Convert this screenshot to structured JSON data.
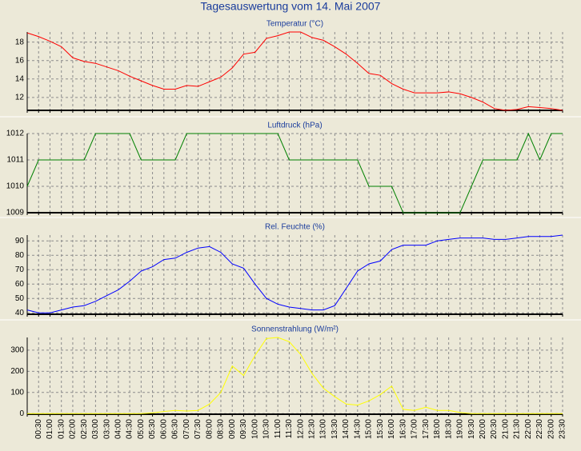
{
  "title": "Tagesauswertung vom 14. Mai 2007",
  "chart_data": [
    {
      "type": "line",
      "title": "Temperatur (°C)",
      "color": "#ff0000",
      "ylim": [
        10.6,
        19.1
      ],
      "yticks": [
        12,
        14,
        16,
        18
      ],
      "grid": true,
      "values": [
        19.0,
        18.6,
        18.1,
        17.5,
        16.3,
        15.9,
        15.7,
        15.3,
        14.9,
        14.3,
        13.8,
        13.3,
        12.9,
        12.9,
        13.3,
        13.2,
        13.7,
        14.2,
        15.2,
        16.7,
        16.9,
        18.4,
        18.7,
        19.1,
        19.1,
        18.5,
        18.2,
        17.5,
        16.7,
        15.7,
        14.6,
        14.4,
        13.5,
        12.9,
        12.5,
        12.5,
        12.5,
        12.6,
        12.4,
        12.0,
        11.5,
        10.8,
        10.6,
        10.7,
        11.0,
        10.9,
        10.8,
        10.6
      ]
    },
    {
      "type": "line",
      "title": "Luftdruck (hPa)",
      "color": "#008000",
      "ylim": [
        1009,
        1012
      ],
      "yticks": [
        1009,
        1010,
        1011,
        1012
      ],
      "grid": true,
      "values": [
        1010,
        1011,
        1011,
        1011,
        1011,
        1011,
        1012,
        1012,
        1012,
        1012,
        1011,
        1011,
        1011,
        1011,
        1012,
        1012,
        1012,
        1012,
        1012,
        1012,
        1012,
        1012,
        1012,
        1011,
        1011,
        1011,
        1011,
        1011,
        1011,
        1011,
        1010,
        1010,
        1010,
        1009,
        1009,
        1009,
        1009,
        1009,
        1009,
        1010,
        1011,
        1011,
        1011,
        1011,
        1012,
        1011,
        1012,
        1012
      ]
    },
    {
      "type": "line",
      "title": "Rel. Feuchte (%)",
      "color": "#0000ff",
      "ylim": [
        39,
        94
      ],
      "yticks": [
        40,
        50,
        60,
        70,
        80,
        90
      ],
      "grid": true,
      "values": [
        42,
        40,
        40,
        42,
        44,
        45,
        48,
        52,
        56,
        62,
        69,
        72,
        77,
        78,
        82,
        85,
        86,
        82,
        74,
        71,
        60,
        50,
        46,
        44,
        43,
        42,
        42,
        45,
        57,
        69,
        74,
        76,
        84,
        87,
        87,
        87,
        90,
        91,
        92,
        92,
        92,
        91,
        91,
        92,
        93,
        93,
        93,
        94
      ]
    },
    {
      "type": "line",
      "title": "Sonnenstrahlung (W/m²)",
      "color": "#ffff00",
      "ylim": [
        -3,
        360
      ],
      "yticks": [
        0,
        100,
        200,
        300
      ],
      "grid": true,
      "categories": [
        null,
        "00:30",
        "01:00",
        "01:30",
        "02:00",
        "02:30",
        "03:00",
        "03:30",
        "04:00",
        "04:30",
        "05:00",
        "05:30",
        "06:00",
        "06:30",
        "07:00",
        "07:30",
        "08:00",
        "08:30",
        "09:00",
        "09:30",
        "10:00",
        "10:30",
        "11:00",
        "11:30",
        "12:00",
        "12:30",
        "13:00",
        "13:30",
        "14:00",
        "14:30",
        "15:00",
        "15:30",
        "16:00",
        "16:30",
        "17:00",
        "17:30",
        "18:00",
        "18:30",
        "19:00",
        "19:30",
        "20:00",
        "20:30",
        "21:00",
        "21:30",
        "22:00",
        "22:30",
        "23:00",
        "23:30"
      ],
      "values": [
        0,
        0,
        0,
        0,
        0,
        0,
        0,
        0,
        0,
        0,
        0,
        3,
        10,
        15,
        12,
        15,
        45,
        100,
        225,
        180,
        275,
        355,
        360,
        340,
        280,
        190,
        120,
        80,
        45,
        40,
        60,
        90,
        130,
        20,
        15,
        30,
        15,
        15,
        5,
        0,
        0,
        0,
        0,
        0,
        0,
        0,
        0,
        0
      ]
    }
  ]
}
